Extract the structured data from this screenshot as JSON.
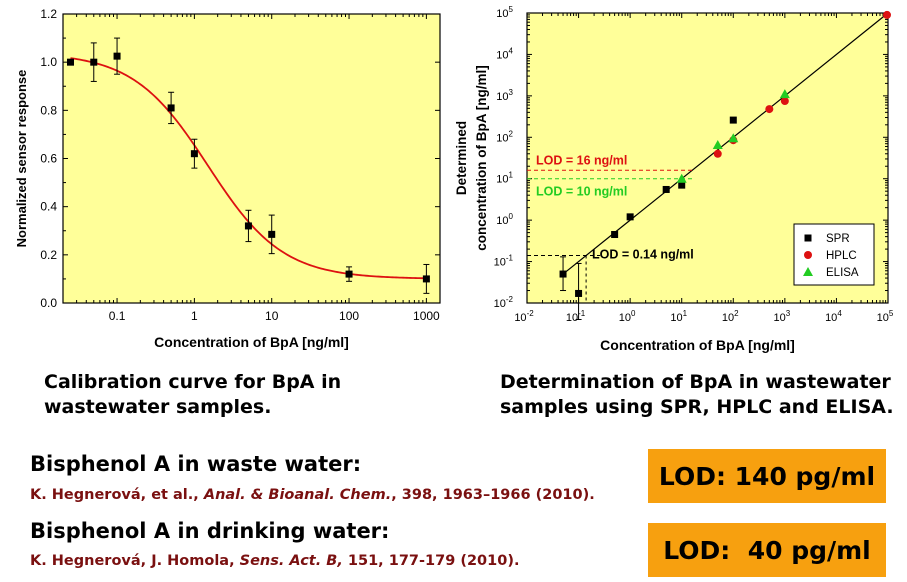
{
  "chart_data": [
    {
      "type": "scatter",
      "ylabel": "Normalized sensor response",
      "xlabel": "Concentration of BpA [ng/ml]",
      "xscale": "log",
      "xlim": [
        0.02,
        1500
      ],
      "ylim": [
        0,
        1.2
      ],
      "xticks": [
        0.1,
        1,
        10,
        100,
        1000
      ],
      "xtick_labels": [
        "0.1",
        "1",
        "10",
        "100",
        "1000"
      ],
      "yticks": [
        0,
        0.2,
        0.4,
        0.6,
        0.8,
        1.0,
        1.2
      ],
      "ytick_labels": [
        "0.0",
        "0.2",
        "0.4",
        "0.6",
        "0.8",
        "1.0",
        "1.2"
      ],
      "points": [
        {
          "x": 0.025,
          "y": 1.0,
          "err": 0
        },
        {
          "x": 0.05,
          "y": 1.0,
          "err": 0.08
        },
        {
          "x": 0.1,
          "y": 1.025,
          "err": 0.075
        },
        {
          "x": 0.5,
          "y": 0.81,
          "err": 0.065
        },
        {
          "x": 1,
          "y": 0.62,
          "err": 0.06
        },
        {
          "x": 5,
          "y": 0.32,
          "err": 0.065
        },
        {
          "x": 10,
          "y": 0.285,
          "err": 0.08
        },
        {
          "x": 100,
          "y": 0.12,
          "err": 0.03
        },
        {
          "x": 1000,
          "y": 0.1,
          "err": 0.06
        }
      ],
      "fit": {
        "top": 1.04,
        "bottom": 0.1,
        "ec50": 1.5,
        "hill": 0.9
      },
      "caption": "Calibration curve for BpA in wastewater samples."
    },
    {
      "type": "scatter",
      "ylabel_line1": "Determined",
      "ylabel_line2": "concentration of BpA [ng/ml]",
      "xlabel": "Concentration of BpA [ng/ml]",
      "xscale": "log",
      "yscale": "log",
      "xlim": [
        0.01,
        100000
      ],
      "ylim": [
        0.01,
        100000
      ],
      "tick_exponents": [
        -2,
        -1,
        0,
        1,
        2,
        3,
        4,
        5
      ],
      "series": [
        {
          "name": "SPR",
          "color": "#000000",
          "marker": "square",
          "points": [
            [
              0.05,
              0.05
            ],
            [
              0.1,
              0.017
            ],
            [
              0.5,
              0.45
            ],
            [
              1,
              1.2
            ],
            [
              5,
              5.5
            ],
            [
              10,
              7
            ],
            [
              100,
              260
            ]
          ],
          "errorbars": [
            [
              0.05,
              0.02,
              0.13
            ],
            [
              0.1,
              0.004,
              0.09
            ]
          ]
        },
        {
          "name": "HPLC",
          "color": "#dd1111",
          "marker": "circle",
          "points": [
            [
              50,
              40
            ],
            [
              100,
              85
            ],
            [
              500,
              480
            ],
            [
              1000,
              750
            ],
            [
              100000,
              90000
            ]
          ]
        },
        {
          "name": "ELISA",
          "color": "#22cc22",
          "marker": "triangle",
          "points": [
            [
              10,
              10
            ],
            [
              50,
              65
            ],
            [
              100,
              95
            ],
            [
              1000,
              1100
            ]
          ]
        }
      ],
      "lines": [
        {
          "label": "LOD = 16 ng/ml",
          "y": 16,
          "color": "#dd1111"
        },
        {
          "label": "LOD = 10 ng/ml",
          "y": 10,
          "color": "#22cc22"
        },
        {
          "label": "LOD = 0.14 ng/ml",
          "y": 0.14,
          "color": "#000000"
        }
      ],
      "legend_position": "bottom-right",
      "caption": "Determination of BpA in wastewater samples using SPR, HPLC and ELISA."
    }
  ],
  "footer": {
    "heading1": "Bisphenol A in waste water:",
    "ref1_authors": "K. Hegnerová, et al., ",
    "ref1_journal": "Anal. & Bioanal. Chem.",
    "ref1_tail": ", 398, 1963–1966 (2010).",
    "lod1": "LOD: 140 pg/ml",
    "heading2": "Bisphenol A in drinking water:",
    "ref2_authors": "K. Hegnerová, J. Homola, ",
    "ref2_journal": "Sens. Act. B,",
    "ref2_tail": " 151, 177-179 (2010).",
    "lod2": "LOD:  40 pg/ml",
    "lod_box_color": "#f7a00f",
    "ref_color": "#7a1010"
  }
}
